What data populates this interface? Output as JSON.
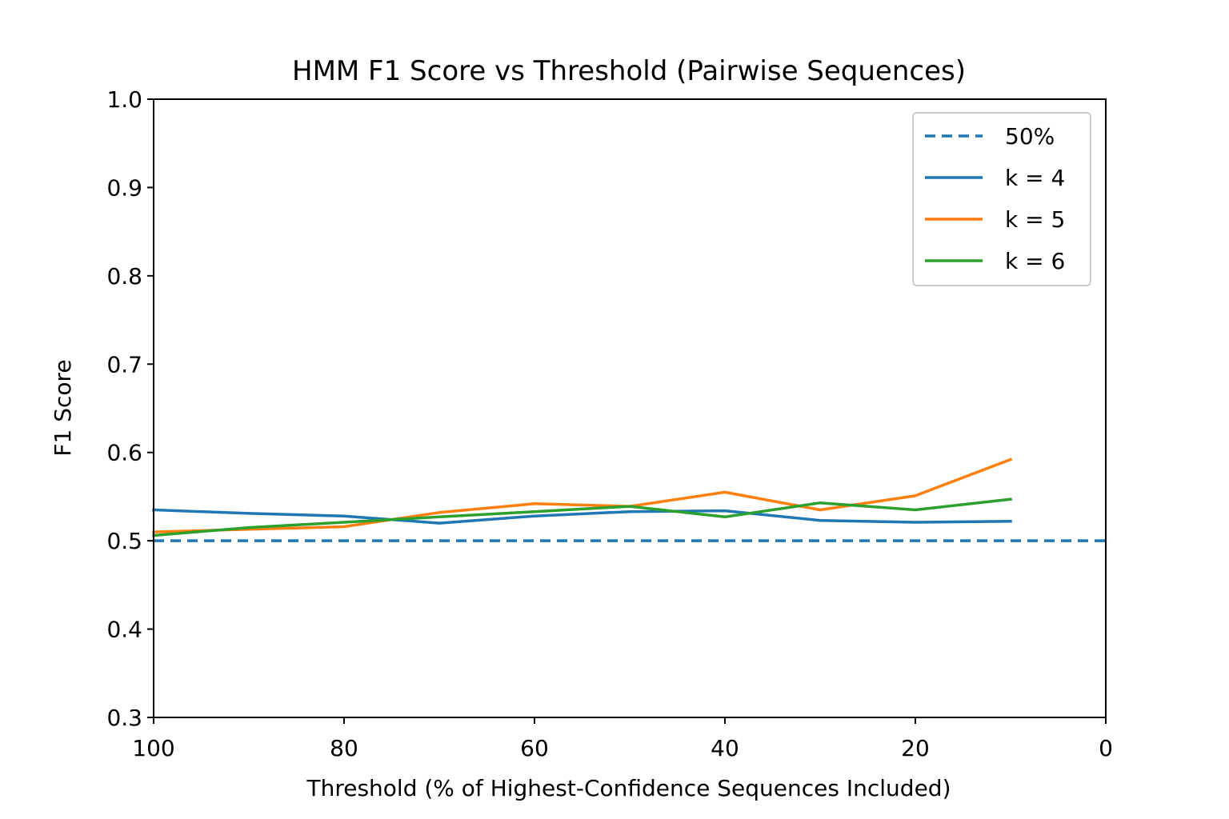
{
  "chart_data": {
    "type": "line",
    "title": "HMM F1 Score vs Threshold (Pairwise Sequences)",
    "xlabel": "Threshold (% of Highest-Confidence Sequences Included)",
    "ylabel": "F1 Score",
    "xlim": [
      100,
      0
    ],
    "ylim": [
      0.3,
      1.0
    ],
    "x_ticks": [
      100,
      80,
      60,
      40,
      20,
      0
    ],
    "x_tick_labels": [
      "100",
      "80",
      "60",
      "40",
      "20",
      "0"
    ],
    "y_ticks": [
      0.3,
      0.4,
      0.5,
      0.6,
      0.7,
      0.8,
      0.9,
      1.0
    ],
    "y_tick_labels": [
      "0.3",
      "0.4",
      "0.5",
      "0.6",
      "0.7",
      "0.8",
      "0.9",
      "1.0"
    ],
    "grid": false,
    "legend_position": "top-right",
    "reference_line": {
      "name": "50%",
      "y": 0.5,
      "style": "dashed",
      "color": "#1f77b4"
    },
    "x": [
      100,
      90,
      80,
      70,
      60,
      50,
      40,
      30,
      20,
      10
    ],
    "series": [
      {
        "name": "k = 4",
        "color": "#1f77b4",
        "values": [
          0.535,
          0.531,
          0.528,
          0.52,
          0.528,
          0.533,
          0.534,
          0.523,
          0.521,
          0.522
        ]
      },
      {
        "name": "k = 5",
        "color": "#ff7f0e",
        "values": [
          0.51,
          0.513,
          0.516,
          0.532,
          0.542,
          0.539,
          0.555,
          0.535,
          0.551,
          0.592
        ]
      },
      {
        "name": "k = 6",
        "color": "#2ca02c",
        "values": [
          0.506,
          0.515,
          0.521,
          0.527,
          0.533,
          0.539,
          0.527,
          0.543,
          0.535,
          0.547
        ]
      }
    ]
  }
}
